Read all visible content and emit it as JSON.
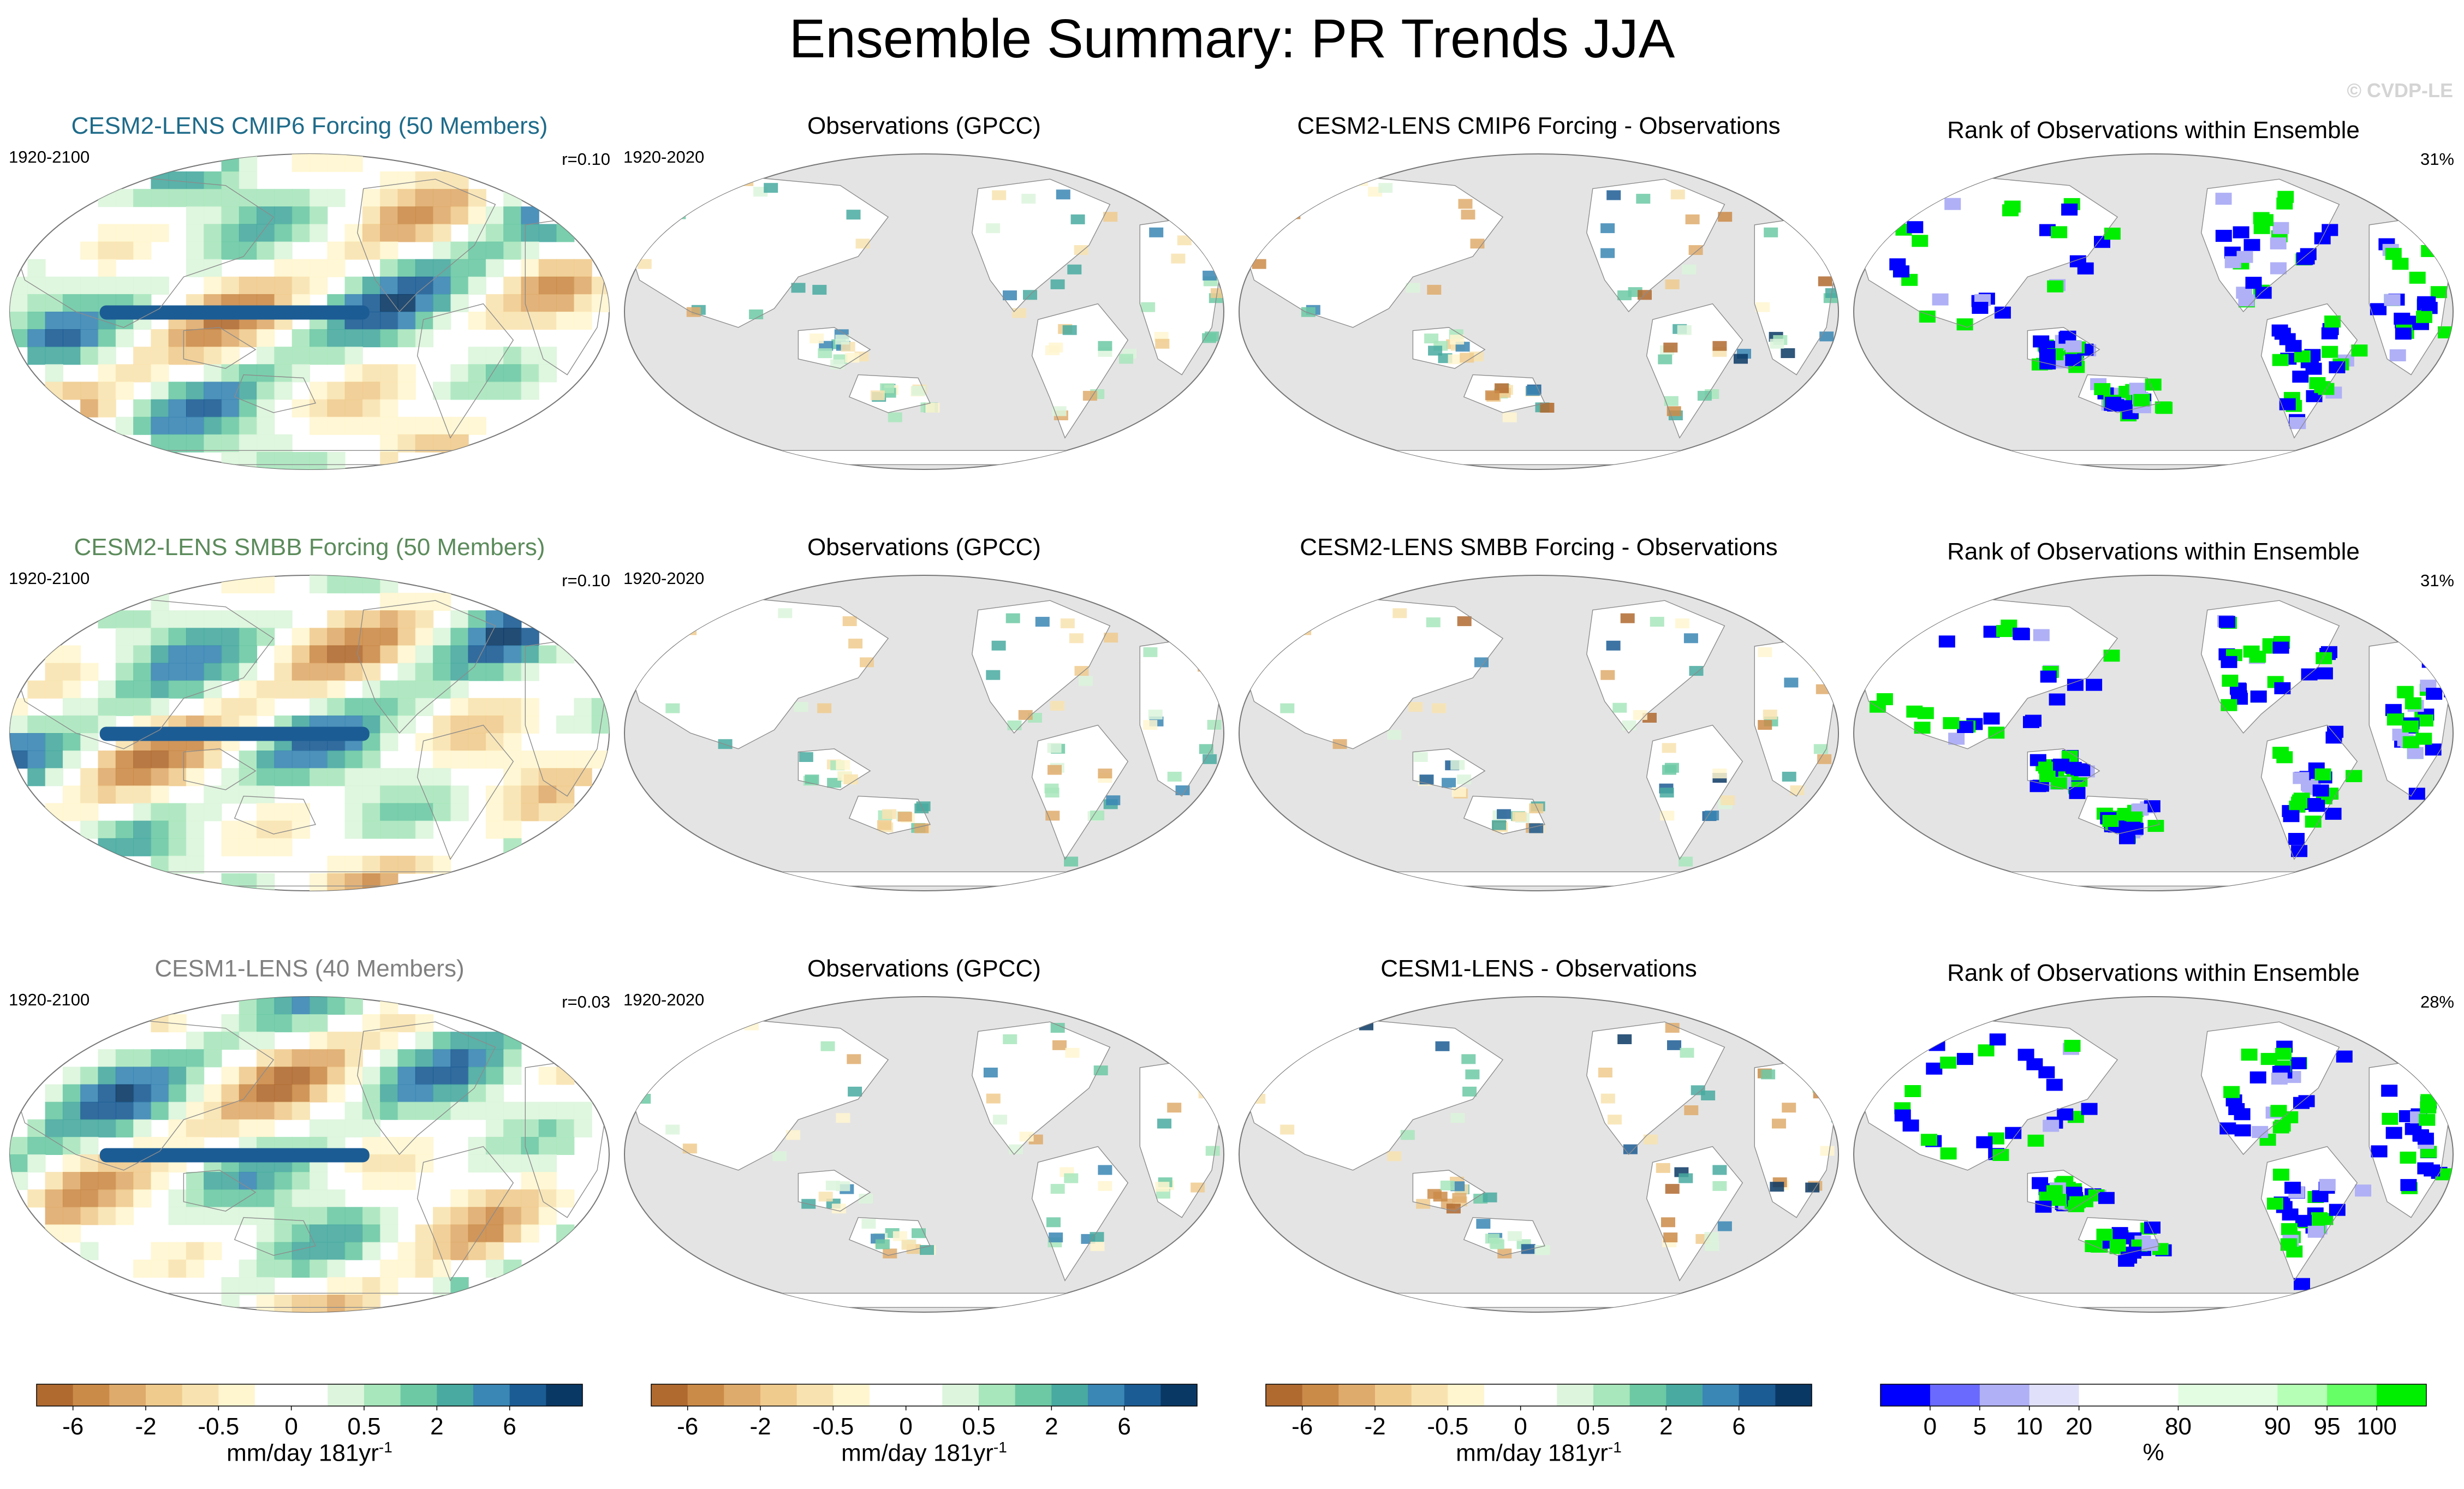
{
  "header": {
    "title": "Ensemble Summary: PR Trends JJA",
    "watermark": "© CVDP-LE"
  },
  "colors": {
    "ocean_gray": "#e4e4e4",
    "land_white": "#ffffff",
    "title_cmip6": "#1e6b8a",
    "title_smbb": "#5b8b5b",
    "title_cesm1": "#808080"
  },
  "chart_data": {
    "type": "heatmap",
    "rows": [
      {
        "model": {
          "title": "CESM2-LENS CMIP6 Forcing (50 Members)",
          "period": "1920-2100",
          "pattern_corr": "r=0.10",
          "title_color": "#1e6b8a"
        },
        "obs": {
          "title": "Observations (GPCC)",
          "period": "1920-2020"
        },
        "diff": {
          "title": "CESM2-LENS CMIP6 Forcing - Observations"
        },
        "rank": {
          "title": "Rank of Observations within Ensemble",
          "percent": "31%"
        }
      },
      {
        "model": {
          "title": "CESM2-LENS SMBB Forcing (50 Members)",
          "period": "1920-2100",
          "pattern_corr": "r=0.10",
          "title_color": "#5b8b5b"
        },
        "obs": {
          "title": "Observations (GPCC)",
          "period": "1920-2020"
        },
        "diff": {
          "title": "CESM2-LENS SMBB Forcing - Observations"
        },
        "rank": {
          "title": "Rank of Observations within Ensemble",
          "percent": "31%"
        }
      },
      {
        "model": {
          "title": "CESM1-LENS (40 Members)",
          "period": "1920-2100",
          "pattern_corr": "r=0.03",
          "title_color": "#808080"
        },
        "obs": {
          "title": "Observations (GPCC)",
          "period": "1920-2020"
        },
        "diff": {
          "title": "CESM1-LENS - Observations"
        },
        "rank": {
          "title": "Rank of Observations within Ensemble",
          "percent": "28%"
        }
      }
    ],
    "trend_colorbar": {
      "colors": [
        "#b06a30",
        "#cb8b48",
        "#dfab6c",
        "#f0cb8e",
        "#f8e3b0",
        "#fff6d0",
        "#ffffff",
        "#ffffff",
        "#dcf5dc",
        "#a8e6bc",
        "#6cc9a4",
        "#48aaa0",
        "#3a86b4",
        "#1c5c94",
        "#0a3864"
      ],
      "tick_labels": [
        "-6",
        "-2",
        "-0.5",
        "0",
        "0.5",
        "2",
        "6"
      ],
      "tick_boundaries": [
        1,
        3,
        5,
        7,
        9,
        11,
        13
      ],
      "units": "mm/day 181yr",
      "units_sup": "-1"
    },
    "rank_colorbar": {
      "colors": [
        "#0000ff",
        "#6a6aff",
        "#b0b0f6",
        "#e0e0fb",
        "#ffffff",
        "#ffffff",
        "#e2fde2",
        "#e2fde2",
        "#b6ffb6",
        "#66ff66",
        "#00ee00"
      ],
      "tick_labels": [
        "0",
        "5",
        "10",
        "20",
        "80",
        "90",
        "95",
        "100"
      ],
      "tick_boundaries": [
        1,
        2,
        3,
        4,
        6,
        8,
        9,
        10
      ],
      "units": "%"
    }
  }
}
